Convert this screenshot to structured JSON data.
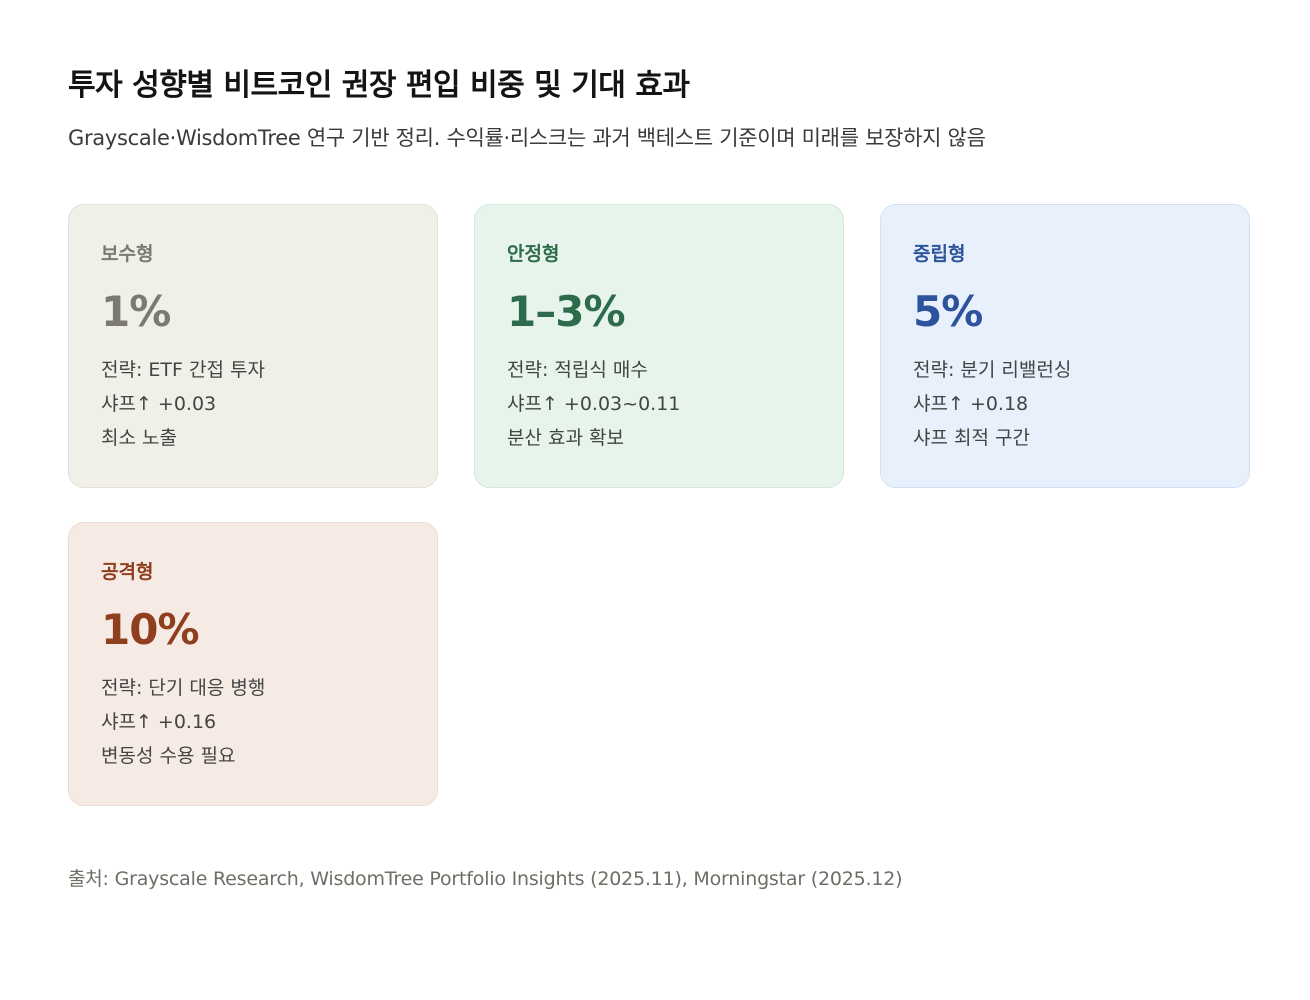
{
  "title": "투자 성향별 비트코인 권장 편입 비중 및 기대 효과",
  "subtitle": "Grayscale·WisdomTree 연구 기반 정리. 수익률·리스크는 과거 백테스트 기준이며 미래를 보장하지 않음",
  "cards": [
    {
      "label": "보수형",
      "value": "1%",
      "lines": [
        "전략: ETF 간접 투자",
        "샤프↑ +0.03",
        "최소 노출"
      ],
      "accent": "#7a7a72"
    },
    {
      "label": "안정형",
      "value": "1–3%",
      "lines": [
        "전략: 적립식 매수",
        "샤프↑ +0.03~0.11",
        "분산 효과 확보"
      ],
      "accent": "#2e6b4a"
    },
    {
      "label": "중립형",
      "value": "5%",
      "lines": [
        "전략: 분기 리밸런싱",
        "샤프↑ +0.18",
        "샤프 최적 구간"
      ],
      "accent": "#2c539c"
    },
    {
      "label": "공격형",
      "value": "10%",
      "lines": [
        "전략: 단기 대응 병행",
        "샤프↑ +0.16",
        "변동성 수용 필요"
      ],
      "accent": "#8f3f1e"
    }
  ],
  "source": "출처: Grayscale Research, WisdomTree Portfolio Insights (2025.11), Morningstar (2025.12)"
}
